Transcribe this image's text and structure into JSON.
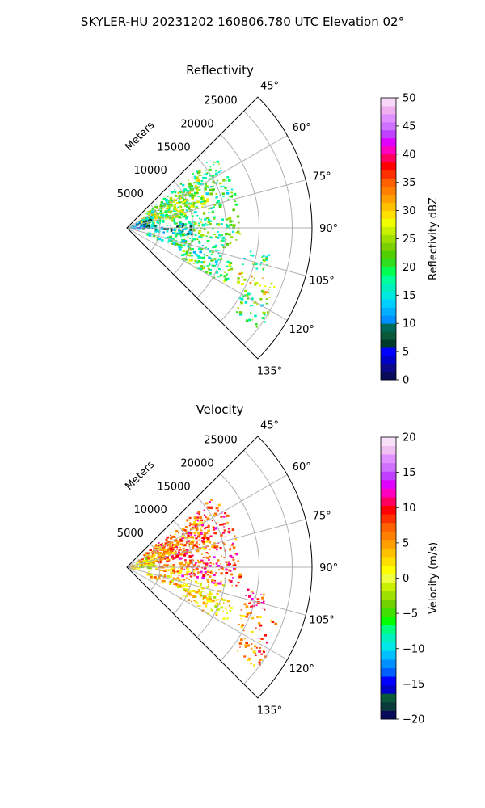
{
  "figure": {
    "suptitle": "SKYLER-HU  20231202  160806.780 UTC Elevation 02°"
  },
  "chart_data": [
    {
      "type": "heatmap",
      "subtype": "polar-sector-ppi",
      "title": "Reflectivity",
      "radial_label": "Meters",
      "radial_ticks": [
        "5000",
        "10000",
        "15000",
        "20000",
        "25000"
      ],
      "radial_tick_values": [
        5000,
        10000,
        15000,
        20000,
        25000
      ],
      "r_max": 28000,
      "theta_range_deg": [
        45,
        135
      ],
      "angle_ticks": [
        "45°",
        "60°",
        "75°",
        "90°",
        "105°",
        "120°",
        "135°"
      ],
      "angle_tick_values": [
        45,
        60,
        75,
        90,
        105,
        120,
        135
      ],
      "grid": true,
      "colorbar": {
        "label": "Reflectivity dBZ",
        "range": [
          0,
          50
        ],
        "ticks": [
          "0",
          "5",
          "10",
          "15",
          "20",
          "25",
          "30",
          "35",
          "40",
          "45",
          "50"
        ],
        "tick_values": [
          0,
          5,
          10,
          15,
          20,
          25,
          30,
          35,
          40,
          45,
          50
        ],
        "colors": [
          "#0a0a5a",
          "#0a0a8a",
          "#0000c8",
          "#0000ff",
          "#003a2a",
          "#0a5a3a",
          "#006a5a",
          "#0090ff",
          "#00b0ff",
          "#00d0ff",
          "#00e8e0",
          "#00f0c0",
          "#00ff9a",
          "#00ff50",
          "#30e020",
          "#50d000",
          "#7ad000",
          "#a0e000",
          "#c8f000",
          "#f0ff00",
          "#ffe000",
          "#ffc000",
          "#ffa000",
          "#ff8000",
          "#ff6000",
          "#ff3000",
          "#ff0000",
          "#ff0060",
          "#ff00c0",
          "#e000ff",
          "#c040ff",
          "#d070ff",
          "#e090ff",
          "#f0b0f0",
          "#f8d8f8"
        ]
      },
      "echo_regions": [
        {
          "t0": 50,
          "t1": 80,
          "r0": 3000,
          "r1": 17000,
          "value": 20
        },
        {
          "t0": 54,
          "t1": 76,
          "r0": 2000,
          "r1": 13000,
          "value": 25
        },
        {
          "t0": 82,
          "t1": 100,
          "r0": 7000,
          "r1": 17000,
          "value": 20
        },
        {
          "t0": 84,
          "t1": 96,
          "r0": 4000,
          "r1": 10000,
          "value": 12
        },
        {
          "t0": 100,
          "t1": 112,
          "r0": 3000,
          "r1": 15000,
          "value": 18
        },
        {
          "t0": 108,
          "t1": 120,
          "r0": 9000,
          "r1": 17000,
          "value": 22
        },
        {
          "t0": 110,
          "t1": 118,
          "r0": 18000,
          "r1": 24000,
          "value": 28
        },
        {
          "t0": 118,
          "t1": 128,
          "r0": 20000,
          "r1": 25000,
          "value": 20
        },
        {
          "t0": 100,
          "t1": 108,
          "r0": 18000,
          "r1": 22000,
          "value": 20
        },
        {
          "t0": 60,
          "t1": 90,
          "r0": 500,
          "r1": 4000,
          "value": 10
        }
      ]
    },
    {
      "type": "heatmap",
      "subtype": "polar-sector-ppi",
      "title": "Velocity",
      "radial_label": "Meters",
      "radial_ticks": [
        "5000",
        "10000",
        "15000",
        "20000",
        "25000"
      ],
      "radial_tick_values": [
        5000,
        10000,
        15000,
        20000,
        25000
      ],
      "r_max": 28000,
      "theta_range_deg": [
        45,
        135
      ],
      "angle_ticks": [
        "45°",
        "60°",
        "75°",
        "90°",
        "105°",
        "120°",
        "135°"
      ],
      "angle_tick_values": [
        45,
        60,
        75,
        90,
        105,
        120,
        135
      ],
      "grid": true,
      "colorbar": {
        "label": "Velocity (m/s)",
        "range": [
          -20,
          20
        ],
        "ticks": [
          "−20",
          "−15",
          "−10",
          "−5",
          "0",
          "5",
          "10",
          "15",
          "20"
        ],
        "tick_values": [
          -20,
          -15,
          -10,
          -5,
          0,
          5,
          10,
          15,
          20
        ],
        "colors": [
          "#0a0a5a",
          "#0a3a3a",
          "#0a5a3a",
          "#0000c8",
          "#0000ff",
          "#0060ff",
          "#0090ff",
          "#00c0ff",
          "#00e8e8",
          "#00f0c0",
          "#00ff80",
          "#00ff00",
          "#40e000",
          "#70d000",
          "#a0e000",
          "#c8f000",
          "#f0ff40",
          "#ffff00",
          "#ffe000",
          "#ffc000",
          "#ffa000",
          "#ff8000",
          "#ff6000",
          "#ff3000",
          "#ff0000",
          "#ff0060",
          "#ff00c0",
          "#e000ff",
          "#c040ff",
          "#d070ff",
          "#e090ff",
          "#f0c0f0",
          "#f8e0f8"
        ]
      },
      "echo_regions": [
        {
          "t0": 50,
          "t1": 80,
          "r0": 3000,
          "r1": 17000,
          "value": 8
        },
        {
          "t0": 54,
          "t1": 76,
          "r0": 2000,
          "r1": 13000,
          "value": 5
        },
        {
          "t0": 82,
          "t1": 100,
          "r0": 7000,
          "r1": 17000,
          "value": 9
        },
        {
          "t0": 84,
          "t1": 96,
          "r0": 4000,
          "r1": 10000,
          "value": 4
        },
        {
          "t0": 100,
          "t1": 112,
          "r0": 3000,
          "r1": 15000,
          "value": 3
        },
        {
          "t0": 108,
          "t1": 120,
          "r0": 9000,
          "r1": 17000,
          "value": 2
        },
        {
          "t0": 110,
          "t1": 118,
          "r0": 18000,
          "r1": 24000,
          "value": 6
        },
        {
          "t0": 118,
          "t1": 128,
          "r0": 20000,
          "r1": 25000,
          "value": 7
        },
        {
          "t0": 100,
          "t1": 108,
          "r0": 18000,
          "r1": 22000,
          "value": 9
        },
        {
          "t0": 60,
          "t1": 90,
          "r0": 500,
          "r1": 4000,
          "value": 1
        }
      ]
    }
  ]
}
